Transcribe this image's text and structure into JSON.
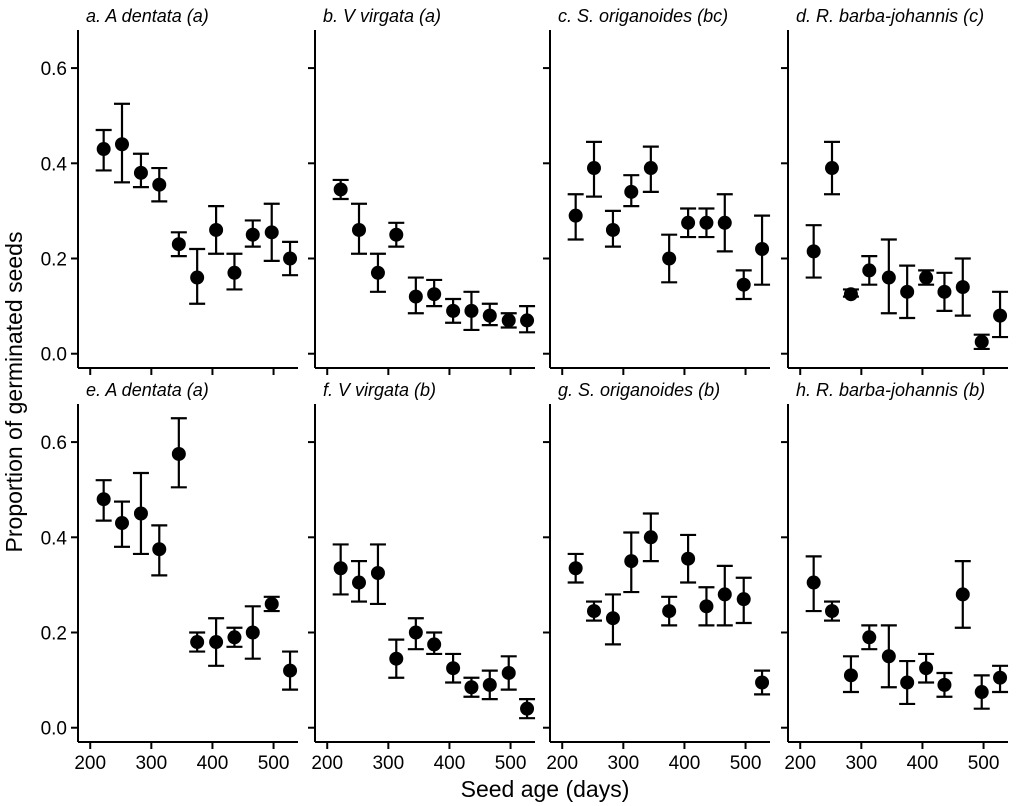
{
  "figure": {
    "xlabel": "Seed age (days)",
    "ylabel": "Proportion of germinated seeds"
  },
  "chart_data": [
    {
      "type": "scatter",
      "title": "a. A dentata (a)",
      "xlim": [
        180,
        540
      ],
      "ylim": [
        -0.03,
        0.68
      ],
      "xticks": [
        200,
        300,
        400,
        500
      ],
      "yticks": [
        0.0,
        0.2,
        0.4,
        0.6
      ],
      "ytick_labels": [
        "0.0",
        "0.2",
        "0.4",
        "0.6"
      ],
      "x": [
        222,
        252,
        283,
        313,
        345,
        375,
        406,
        436,
        466,
        497,
        527
      ],
      "y": [
        0.43,
        0.44,
        0.38,
        0.355,
        0.23,
        0.16,
        0.26,
        0.17,
        0.25,
        0.255,
        0.2
      ],
      "err_low": [
        0.385,
        0.36,
        0.35,
        0.32,
        0.205,
        0.105,
        0.21,
        0.135,
        0.225,
        0.195,
        0.165
      ],
      "err_high": [
        0.47,
        0.525,
        0.42,
        0.39,
        0.255,
        0.22,
        0.31,
        0.21,
        0.28,
        0.315,
        0.235
      ]
    },
    {
      "type": "scatter",
      "title": "b. V virgata (a)",
      "xlim": [
        180,
        540
      ],
      "ylim": [
        -0.03,
        0.68
      ],
      "xticks": [
        200,
        300,
        400,
        500
      ],
      "x": [
        222,
        252,
        283,
        313,
        345,
        375,
        406,
        436,
        466,
        497,
        527
      ],
      "y": [
        0.345,
        0.26,
        0.17,
        0.25,
        0.12,
        0.125,
        0.09,
        0.09,
        0.08,
        0.07,
        0.07
      ],
      "err_low": [
        0.325,
        0.21,
        0.13,
        0.225,
        0.085,
        0.1,
        0.065,
        0.05,
        0.06,
        0.055,
        0.045
      ],
      "err_high": [
        0.365,
        0.315,
        0.21,
        0.275,
        0.16,
        0.155,
        0.115,
        0.13,
        0.105,
        0.085,
        0.1
      ]
    },
    {
      "type": "scatter",
      "title": "c. S. origanoides (bc)",
      "xlim": [
        180,
        540
      ],
      "ylim": [
        -0.03,
        0.68
      ],
      "xticks": [
        200,
        300,
        400,
        500
      ],
      "x": [
        222,
        252,
        283,
        313,
        345,
        375,
        406,
        436,
        466,
        497,
        527
      ],
      "y": [
        0.29,
        0.39,
        0.26,
        0.34,
        0.39,
        0.2,
        0.275,
        0.275,
        0.275,
        0.145,
        0.22
      ],
      "err_low": [
        0.24,
        0.33,
        0.225,
        0.31,
        0.34,
        0.15,
        0.245,
        0.245,
        0.215,
        0.115,
        0.145
      ],
      "err_high": [
        0.335,
        0.445,
        0.3,
        0.375,
        0.435,
        0.25,
        0.305,
        0.305,
        0.335,
        0.175,
        0.29
      ]
    },
    {
      "type": "scatter",
      "title": "d. R. barba-johannis (c)",
      "xlim": [
        180,
        540
      ],
      "ylim": [
        -0.03,
        0.68
      ],
      "xticks": [
        200,
        300,
        400,
        500
      ],
      "x": [
        222,
        252,
        283,
        313,
        345,
        375,
        406,
        436,
        466,
        497,
        527
      ],
      "y": [
        0.215,
        0.39,
        0.125,
        0.175,
        0.16,
        0.13,
        0.16,
        0.13,
        0.14,
        0.025,
        0.08
      ],
      "err_low": [
        0.16,
        0.335,
        0.12,
        0.145,
        0.085,
        0.075,
        0.145,
        0.09,
        0.08,
        0.01,
        0.035
      ],
      "err_high": [
        0.27,
        0.445,
        0.135,
        0.205,
        0.24,
        0.185,
        0.175,
        0.17,
        0.2,
        0.04,
        0.13
      ]
    },
    {
      "type": "scatter",
      "title": "e. A dentata (a)",
      "xlim": [
        180,
        540
      ],
      "ylim": [
        -0.03,
        0.68
      ],
      "xticks": [
        200,
        300,
        400,
        500
      ],
      "yticks": [
        0.0,
        0.2,
        0.4,
        0.6
      ],
      "ytick_labels": [
        "0.0",
        "0.2",
        "0.4",
        "0.6"
      ],
      "x": [
        222,
        252,
        283,
        313,
        345,
        375,
        406,
        436,
        466,
        497,
        527
      ],
      "y": [
        0.48,
        0.43,
        0.45,
        0.375,
        0.575,
        0.18,
        0.18,
        0.19,
        0.2,
        0.26,
        0.12
      ],
      "err_low": [
        0.435,
        0.38,
        0.365,
        0.32,
        0.505,
        0.16,
        0.13,
        0.17,
        0.145,
        0.245,
        0.08
      ],
      "err_high": [
        0.52,
        0.475,
        0.535,
        0.425,
        0.65,
        0.2,
        0.23,
        0.21,
        0.255,
        0.275,
        0.16
      ]
    },
    {
      "type": "scatter",
      "title": "f. V virgata (b)",
      "xlim": [
        180,
        540
      ],
      "ylim": [
        -0.03,
        0.68
      ],
      "xticks": [
        200,
        300,
        400,
        500
      ],
      "x": [
        222,
        252,
        283,
        313,
        345,
        375,
        406,
        436,
        466,
        497,
        527
      ],
      "y": [
        0.335,
        0.305,
        0.325,
        0.145,
        0.2,
        0.175,
        0.125,
        0.085,
        0.09,
        0.115,
        0.04
      ],
      "err_low": [
        0.28,
        0.265,
        0.26,
        0.105,
        0.165,
        0.155,
        0.095,
        0.065,
        0.06,
        0.08,
        0.02
      ],
      "err_high": [
        0.385,
        0.35,
        0.385,
        0.185,
        0.23,
        0.2,
        0.155,
        0.105,
        0.12,
        0.15,
        0.06
      ]
    },
    {
      "type": "scatter",
      "title": "g. S. origanoides (b)",
      "xlim": [
        180,
        540
      ],
      "ylim": [
        -0.03,
        0.68
      ],
      "xticks": [
        200,
        300,
        400,
        500
      ],
      "x": [
        222,
        252,
        283,
        313,
        345,
        375,
        406,
        436,
        466,
        497,
        527
      ],
      "y": [
        0.335,
        0.245,
        0.23,
        0.35,
        0.4,
        0.245,
        0.355,
        0.255,
        0.28,
        0.27,
        0.095
      ],
      "err_low": [
        0.305,
        0.225,
        0.175,
        0.285,
        0.35,
        0.215,
        0.305,
        0.215,
        0.215,
        0.22,
        0.07
      ],
      "err_high": [
        0.365,
        0.265,
        0.28,
        0.41,
        0.45,
        0.275,
        0.405,
        0.295,
        0.34,
        0.315,
        0.12
      ]
    },
    {
      "type": "scatter",
      "title": "h. R. barba-johannis (b)",
      "xlim": [
        180,
        540
      ],
      "ylim": [
        -0.03,
        0.68
      ],
      "xticks": [
        200,
        300,
        400,
        500
      ],
      "x": [
        222,
        252,
        283,
        313,
        345,
        375,
        406,
        436,
        466,
        497,
        527
      ],
      "y": [
        0.305,
        0.245,
        0.11,
        0.19,
        0.15,
        0.095,
        0.125,
        0.09,
        0.28,
        0.075,
        0.105
      ],
      "err_low": [
        0.245,
        0.225,
        0.075,
        0.165,
        0.085,
        0.05,
        0.095,
        0.065,
        0.21,
        0.04,
        0.075
      ],
      "err_high": [
        0.36,
        0.265,
        0.15,
        0.215,
        0.215,
        0.14,
        0.155,
        0.115,
        0.35,
        0.11,
        0.13
      ]
    }
  ]
}
